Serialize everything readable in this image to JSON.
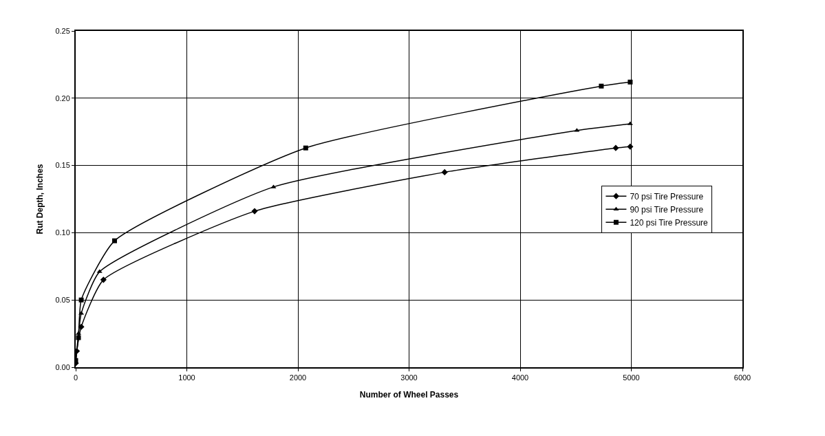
{
  "chart_data": {
    "type": "line",
    "xlabel": "Number of Wheel Passes",
    "ylabel": "Rut Depth, Inches",
    "xlim": [
      0,
      6000
    ],
    "xticks": [
      0,
      1000,
      2000,
      3000,
      4000,
      5000,
      6000
    ],
    "ylim": [
      0,
      0.25
    ],
    "yticks": [
      {
        "value": 0,
        "label": "0.00"
      },
      0.05,
      {
        "value": 0.1,
        "label": "0.10"
      },
      0.15,
      {
        "value": 0.2,
        "label": "0.20"
      },
      0.25
    ],
    "grid": true,
    "legend": "center right",
    "series": [
      {
        "name": "70 psi Tire Pressure",
        "color": "#000000",
        "marker": "diamond",
        "x": [
          0,
          10,
          50,
          250,
          1610,
          3320,
          4860,
          4990
        ],
        "values": [
          0.003,
          0.012,
          0.03,
          0.065,
          0.116,
          0.145,
          0.163,
          0.164
        ]
      },
      {
        "name": "90 psi Tire Pressure",
        "color": "#000000",
        "marker": "triangle",
        "x": [
          0,
          25,
          50,
          215,
          1780,
          4510,
          4990
        ],
        "values": [
          0.004,
          0.025,
          0.04,
          0.071,
          0.134,
          0.176,
          0.181
        ]
      },
      {
        "name": "120 psi Tire Pressure",
        "color": "#000000",
        "marker": "square",
        "x": [
          0,
          25,
          50,
          350,
          2070,
          4730,
          4990
        ],
        "values": [
          0.005,
          0.022,
          0.05,
          0.094,
          0.163,
          0.209,
          0.212
        ]
      }
    ]
  }
}
